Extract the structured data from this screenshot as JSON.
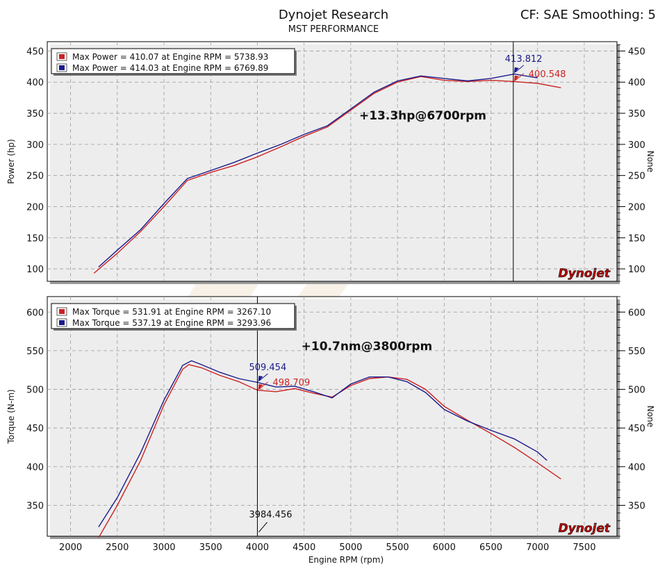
{
  "header": {
    "title": "Dynojet Research",
    "subtitle": "MST PERFORMANCE",
    "cf_info": "CF: SAE Smoothing: 5"
  },
  "colors": {
    "run1": "#cc2222",
    "run2": "#1a1a8c",
    "grid": "#9a9a9a",
    "watermark": "#f3e6d6"
  },
  "chart_data": [
    {
      "type": "line",
      "id": "power",
      "ylabel": "Power (hp)",
      "ylabel_right": "None",
      "xlim": [
        1750,
        7850
      ],
      "ylim": [
        80,
        465
      ],
      "yticks": [
        100,
        150,
        200,
        250,
        300,
        350,
        400,
        450
      ],
      "legend": {
        "placement": "top-left",
        "entries": [
          "Max Power = 410.07 at Engine RPM = 5738.93",
          "Max Power = 414.03 at Engine RPM = 6769.89"
        ]
      },
      "cursor": {
        "x": 6740,
        "labels": [
          {
            "text": "413.812",
            "series": 1,
            "y": 413.8
          },
          {
            "text": "400.548",
            "series": 0,
            "y": 400.5
          }
        ]
      },
      "annotation": {
        "text": "+13.3hp@6700rpm",
        "x": 5090,
        "y": 340
      },
      "watermark": "Dynojet",
      "series": [
        {
          "name": "Max Power = 410.07 at Engine RPM = 5738.93",
          "x": [
            2250,
            2500,
            2750,
            3000,
            3250,
            3500,
            3750,
            4000,
            4250,
            4500,
            4750,
            5000,
            5250,
            5500,
            5750,
            6000,
            6250,
            6500,
            6750,
            7000,
            7250
          ],
          "values": [
            93,
            125,
            160,
            200,
            242,
            255,
            266,
            280,
            296,
            313,
            328,
            355,
            382,
            400,
            409,
            403,
            401,
            403,
            401,
            398,
            391
          ]
        },
        {
          "name": "Max Power = 414.03 at Engine RPM = 6769.89",
          "x": [
            2300,
            2500,
            2750,
            3000,
            3250,
            3500,
            3750,
            4000,
            4250,
            4500,
            4750,
            5000,
            5250,
            5500,
            5750,
            6000,
            6250,
            6500,
            6750,
            7000
          ],
          "values": [
            103,
            130,
            163,
            205,
            245,
            258,
            271,
            286,
            300,
            316,
            330,
            357,
            384,
            402,
            410,
            406,
            402,
            406,
            413,
            407
          ]
        }
      ]
    },
    {
      "type": "line",
      "id": "torque",
      "ylabel": "Torque (N-m)",
      "ylabel_right": "None",
      "xlabel": "Engine RPM (rpm)",
      "xlim": [
        1750,
        7850
      ],
      "ylim": [
        310,
        620
      ],
      "yticks": [
        350,
        400,
        450,
        500,
        550,
        600
      ],
      "xticks": [
        2000,
        2500,
        3000,
        3500,
        4000,
        4500,
        5000,
        5500,
        6000,
        6500,
        7000,
        7500
      ],
      "legend": {
        "placement": "top-left",
        "entries": [
          "Max Torque = 531.91 at Engine RPM = 3267.10",
          "Max Torque = 537.19 at Engine RPM = 3293.96"
        ]
      },
      "cursor": {
        "x": 4000,
        "x_label": "3984.456",
        "labels": [
          {
            "text": "509.454",
            "series": 1,
            "y": 509.5
          },
          {
            "text": "498.709",
            "series": 0,
            "y": 498.7
          }
        ]
      },
      "annotation": {
        "text": "+10.7nm@3800rpm",
        "x": 4470,
        "y": 551
      },
      "watermark": "Dynojet",
      "series": [
        {
          "name": "Max Torque = 531.91 at Engine RPM = 3267.10",
          "x": [
            2300,
            2500,
            2750,
            3000,
            3200,
            3267,
            3400,
            3600,
            3800,
            4000,
            4200,
            4400,
            4600,
            4800,
            5000,
            5200,
            5400,
            5600,
            5800,
            6000,
            6250,
            6500,
            6750,
            7000,
            7250
          ],
          "values": [
            308,
            350,
            408,
            480,
            526,
            532,
            528,
            518,
            510,
            499,
            497,
            501,
            495,
            490,
            505,
            514,
            516,
            513,
            500,
            478,
            460,
            443,
            425,
            405,
            384
          ]
        },
        {
          "name": "Max Torque = 537.19 at Engine RPM = 3293.96",
          "x": [
            2300,
            2500,
            2750,
            3000,
            3200,
            3294,
            3400,
            3600,
            3800,
            4000,
            4200,
            4400,
            4600,
            4800,
            5000,
            5200,
            5400,
            5600,
            5800,
            6000,
            6250,
            6500,
            6750,
            7000,
            7100
          ],
          "values": [
            322,
            360,
            418,
            486,
            531,
            537,
            532,
            522,
            514,
            509,
            503,
            504,
            497,
            489,
            507,
            516,
            516,
            510,
            496,
            474,
            459,
            447,
            436,
            419,
            408
          ]
        }
      ]
    }
  ]
}
